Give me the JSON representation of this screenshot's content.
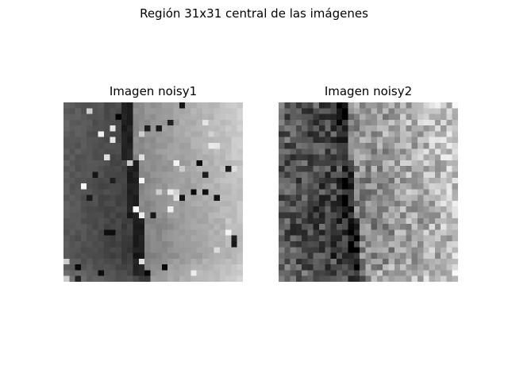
{
  "figure": {
    "suptitle": "Región 31x31 central de las imágenes",
    "panels": [
      {
        "title": "Imagen noisy1",
        "grid_size": 31,
        "colormap": "gray"
      },
      {
        "title": "Imagen noisy2",
        "grid_size": 31,
        "colormap": "gray"
      }
    ]
  }
}
